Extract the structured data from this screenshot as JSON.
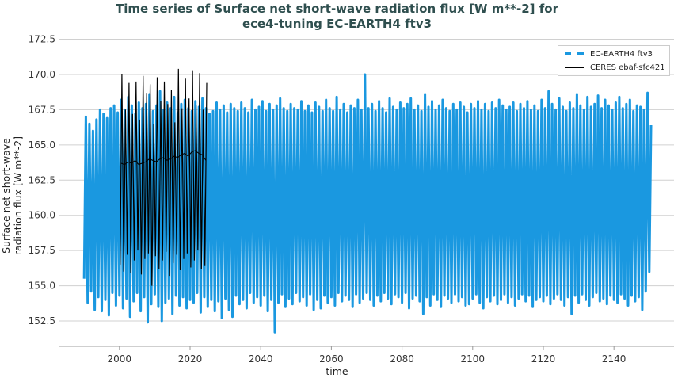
{
  "chart_data": {
    "type": "line",
    "title": "Time series of Surface net short-wave radiation flux [W m**-2] for ece4-tuning EC-EARTH4 ftv3",
    "title_lines": [
      "Time series of Surface net short-wave radiation flux [W m**-2] for",
      "ece4-tuning EC-EARTH4 ftv3"
    ],
    "xlabel": "time",
    "ylabel_lines": [
      "Surface net short-wave",
      "radiation flux [W m**-2]"
    ],
    "xlim": [
      1983,
      2157
    ],
    "ylim": [
      150.7,
      174.5
    ],
    "xticks": [
      "2000",
      "2020",
      "2040",
      "2060",
      "2080",
      "2100",
      "2120",
      "2140"
    ],
    "yticks": [
      "152.5",
      "155.0",
      "157.5",
      "160.0",
      "162.5",
      "165.0",
      "167.5",
      "170.0",
      "172.5"
    ],
    "grid": "horizontal",
    "legend_placement": "top-right",
    "colors": {
      "model": "#1a98e0",
      "obs": "#000000",
      "title": "#2f4f4f"
    },
    "series": [
      {
        "name": "EC-EARTH4 ftv3",
        "style": "dashed thick",
        "start_year": 1990,
        "annual_max": [
          167.0,
          166.5,
          166.0,
          166.8,
          167.5,
          167.2,
          166.9,
          167.6,
          167.8,
          167.3,
          168.2,
          167.5,
          168.4,
          167.8,
          167.2,
          168.0,
          167.6,
          167.9,
          168.6,
          167.4,
          167.8,
          168.8,
          167.5,
          168.0,
          167.6,
          168.4,
          167.3,
          167.9,
          168.2,
          167.6,
          167.4,
          168.1,
          167.7,
          168.3,
          167.6,
          167.2,
          167.4,
          168.0,
          167.5,
          167.8,
          167.3,
          167.9,
          167.6,
          167.4,
          168.0,
          167.6,
          167.3,
          168.2,
          167.5,
          167.7,
          168.1,
          167.4,
          167.9,
          167.5,
          167.8,
          168.3,
          167.6,
          167.4,
          167.9,
          167.6,
          167.5,
          168.1,
          167.4,
          167.8,
          167.3,
          168.0,
          167.7,
          167.4,
          168.2,
          167.6,
          167.4,
          168.4,
          167.5,
          167.9,
          167.3,
          167.8,
          167.6,
          168.2,
          167.5,
          170.0,
          167.6,
          167.9,
          167.4,
          168.1,
          167.6,
          167.3,
          168.3,
          167.7,
          167.5,
          168.0,
          167.6,
          167.9,
          168.3,
          167.5,
          167.8,
          167.4,
          168.6,
          167.7,
          168.1,
          167.5,
          167.8,
          168.2,
          167.6,
          167.4,
          167.9,
          167.5,
          168.0,
          167.7,
          167.3,
          167.9,
          167.6,
          168.1,
          167.5,
          167.9,
          167.4,
          168.0,
          167.6,
          168.2,
          167.8,
          167.5,
          167.7,
          168.0,
          167.4,
          167.9,
          167.6,
          168.1,
          167.5,
          167.8,
          167.4,
          168.2,
          167.6,
          168.8,
          167.9,
          167.5,
          168.3,
          167.7,
          167.4,
          168.0,
          167.6,
          168.6,
          167.8,
          167.5,
          168.4,
          167.7,
          167.9,
          168.5,
          167.6,
          168.2,
          167.8,
          167.5,
          168.0,
          168.4,
          167.6,
          167.9,
          168.2,
          167.4,
          167.8,
          167.7,
          167.5,
          168.7,
          166.4
        ],
        "annual_min": [
          155.5,
          153.8,
          154.6,
          153.3,
          154.2,
          153.2,
          154.0,
          152.9,
          154.5,
          153.6,
          154.3,
          153.4,
          154.1,
          152.8,
          153.9,
          154.5,
          153.2,
          154.2,
          152.4,
          153.7,
          154.4,
          153.5,
          152.5,
          153.8,
          154.1,
          153.0,
          154.3,
          153.6,
          154.2,
          153.4,
          154.0,
          153.8,
          154.5,
          153.1,
          154.2,
          153.5,
          154.0,
          153.2,
          153.9,
          152.7,
          154.1,
          153.3,
          152.8,
          154.3,
          153.7,
          154.0,
          153.4,
          154.5,
          153.8,
          154.2,
          153.6,
          154.3,
          153.2,
          154.0,
          151.7,
          153.8,
          154.4,
          153.5,
          154.1,
          153.7,
          154.5,
          153.9,
          154.2,
          153.6,
          154.4,
          153.3,
          154.0,
          153.4,
          154.3,
          153.8,
          154.2,
          153.6,
          154.5,
          153.9,
          154.3,
          154.0,
          153.5,
          154.4,
          153.8,
          154.1,
          154.5,
          154.0,
          153.6,
          154.3,
          153.9,
          154.5,
          154.1,
          153.7,
          154.4,
          154.2,
          153.8,
          154.5,
          153.4,
          154.1,
          154.3,
          153.9,
          153.0,
          154.2,
          153.6,
          154.4,
          154.0,
          153.5,
          154.3,
          154.1,
          153.8,
          154.4,
          153.9,
          154.2,
          153.6,
          153.7,
          154.1,
          154.4,
          153.8,
          153.4,
          154.2,
          153.9,
          154.3,
          153.7,
          154.0,
          154.4,
          153.8,
          154.2,
          153.6,
          154.1,
          154.4,
          153.9,
          154.3,
          153.5,
          154.0,
          154.2,
          153.9,
          154.3,
          153.7,
          154.1,
          154.4,
          154.0,
          153.6,
          154.2,
          153.0,
          154.3,
          153.8,
          154.4,
          154.0,
          153.6,
          154.2,
          154.5,
          153.9,
          154.1,
          153.7,
          154.3,
          154.0,
          153.8,
          154.4,
          154.1,
          153.6,
          154.3,
          153.9,
          154.2,
          153.3,
          154.6,
          156.0
        ]
      },
      {
        "name": "CERES ebaf-sfc421",
        "style": "solid thin",
        "start_year": 2000.2,
        "annual_max": [
          170.0,
          167.5,
          169.4,
          167.2,
          169.5,
          166.8,
          169.9,
          168.7,
          169.3,
          166.5,
          169.8,
          168.1,
          169.5,
          167.9,
          168.9,
          166.6,
          170.4,
          167.6,
          169.7,
          168.3,
          170.3,
          167.8,
          170.1,
          167.5,
          169.4
        ],
        "annual_min": [
          156.5,
          156.0,
          157.2,
          155.9,
          156.8,
          157.5,
          155.8,
          156.9,
          157.3,
          155.0,
          157.1,
          156.2,
          156.8,
          157.4,
          155.7,
          156.6,
          157.2,
          156.1,
          156.9,
          157.3,
          156.3,
          156.8,
          157.5,
          156.2,
          156.4
        ],
        "running_mean": [
          163.7,
          163.6,
          163.8,
          163.7,
          163.9,
          163.6,
          163.7,
          163.8,
          164.0,
          163.9,
          163.8,
          164.0,
          164.1,
          163.9,
          164.0,
          164.2,
          164.1,
          164.3,
          164.4,
          164.2,
          164.5,
          164.6,
          164.4,
          164.3,
          163.9
        ]
      }
    ]
  }
}
